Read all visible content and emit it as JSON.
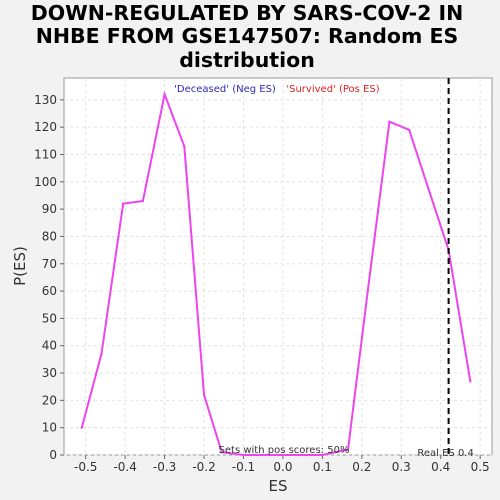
{
  "chart_data": {
    "type": "line",
    "title_lines": [
      "DOWN-REGULATED BY SARS-COV-2 IN",
      "NHBE FROM GSE147507: Random ES",
      "distribution"
    ],
    "xlabel": "ES",
    "ylabel": "P(ES)",
    "xlim": [
      -0.555,
      0.53
    ],
    "ylim": [
      0,
      138
    ],
    "x_ticks": [
      -0.5,
      -0.4,
      -0.3,
      -0.2,
      -0.1,
      0.0,
      0.1,
      0.2,
      0.3,
      0.4,
      0.5
    ],
    "x_tick_labels": [
      "-0.5",
      "-0.4",
      "-0.3",
      "-0.2",
      "-0.1",
      "0.0",
      "0.1",
      "0.2",
      "0.3",
      "0.4",
      "0.5"
    ],
    "y_ticks": [
      0,
      10,
      20,
      30,
      40,
      50,
      60,
      70,
      80,
      90,
      100,
      110,
      120,
      130
    ],
    "y_tick_labels": [
      "0",
      "10",
      "20",
      "30",
      "40",
      "50",
      "60",
      "70",
      "80",
      "90",
      "100",
      "110",
      "120",
      "130"
    ],
    "grid": true,
    "series": [
      {
        "color": "#ee44ee",
        "x": [
          -0.51,
          -0.46,
          -0.405,
          -0.355,
          -0.3,
          -0.25,
          -0.2,
          -0.155,
          -0.1,
          -0.05,
          0.0,
          0.05,
          0.1,
          0.165,
          0.215,
          0.27,
          0.32,
          0.37,
          0.42,
          0.475
        ],
        "y": [
          10,
          37,
          92,
          93,
          132,
          113,
          22,
          1,
          0,
          0,
          0,
          0,
          0,
          2,
          60,
          122,
          119,
          97,
          75,
          27
        ]
      }
    ],
    "legend": [
      {
        "label": "'Deceased' (Neg ES)",
        "color": "#2a2ab8"
      },
      {
        "label": "'Survived' (Pos ES)",
        "color": "#dd2222"
      }
    ],
    "real_es": {
      "value": 0.42,
      "label": "Real ES 0.4"
    },
    "annotation": "Sets with pos scores: 50%"
  }
}
